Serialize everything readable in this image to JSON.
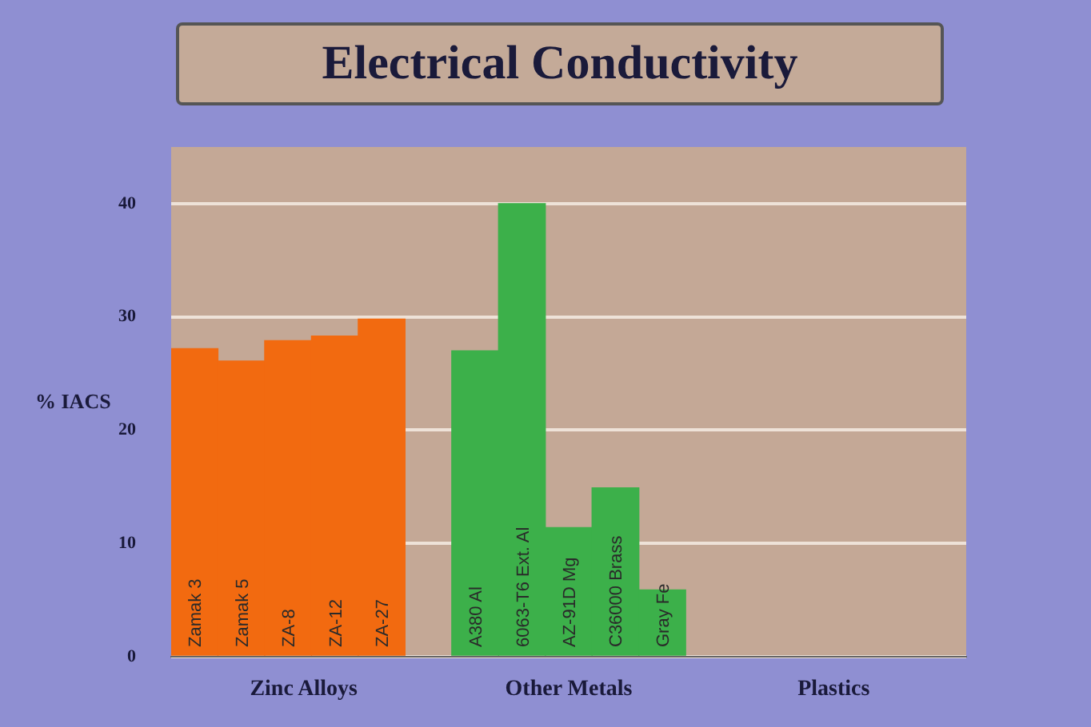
{
  "chart_data": {
    "type": "bar",
    "title": "Electrical Conductivity",
    "ylabel": "% IACS",
    "categories": [
      "Zamak 3",
      "Zamak 5",
      "ZA-8",
      "ZA-12",
      "ZA-27",
      null,
      "A380 Al",
      "6063-T6 Ext. Al",
      "AZ-91D Mg",
      "C36000 Brass",
      "Gray Fe",
      null,
      null,
      null,
      null,
      null,
      null
    ],
    "values": [
      27.2,
      26.1,
      27.9,
      28.3,
      29.8,
      null,
      27,
      40,
      11.4,
      14.9,
      5.9,
      null,
      null,
      null,
      null,
      null,
      null
    ],
    "colors": [
      "#f26a10",
      "#f26a10",
      "#f26a10",
      "#f26a10",
      "#f26a10",
      null,
      "#3cb04a",
      "#3cb04a",
      "#3cb04a",
      "#3cb04a",
      "#3cb04a",
      null,
      null,
      null,
      null,
      null,
      null
    ],
    "annotations": [
      "Zinc Alloys",
      "Other Metals",
      "Plastics"
    ],
    "ylim": [
      0,
      45
    ],
    "yticks": [
      0,
      10,
      20,
      30,
      40
    ],
    "grid": "y",
    "tick_labels": "y",
    "legend": false
  }
}
